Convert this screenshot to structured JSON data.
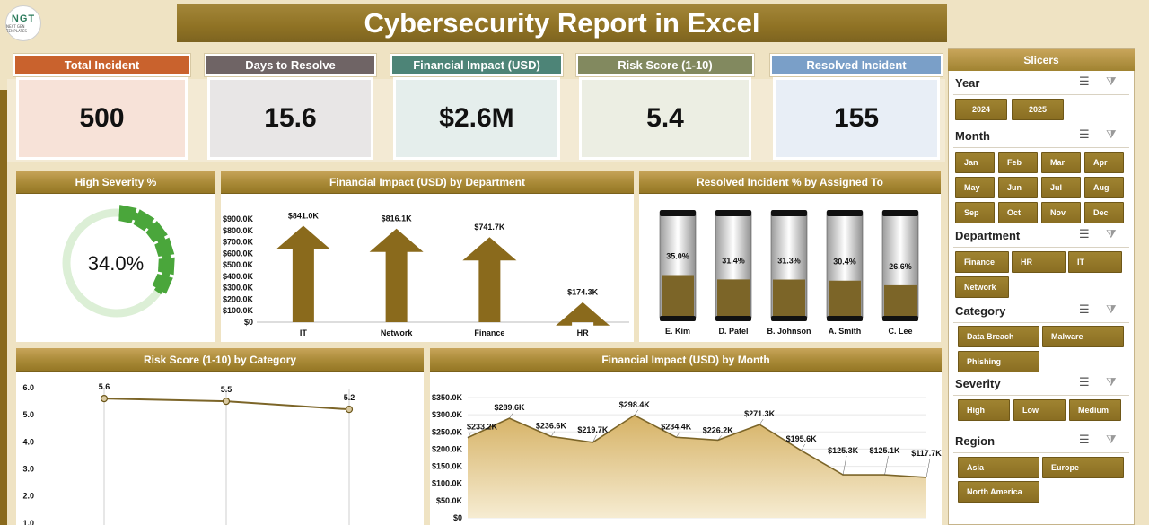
{
  "logo": {
    "text": "NGT",
    "tagline": "NEXT GEN TEMPLATES"
  },
  "title": "Cybersecurity Report in Excel",
  "kpis": [
    {
      "label": "Total Incident",
      "value": "500",
      "head_color": "#c9622d",
      "body_color": "#f7e2d8"
    },
    {
      "label": "Days to Resolve",
      "value": "15.6",
      "head_color": "#6f6465",
      "body_color": "#e8e6e6"
    },
    {
      "label": "Financial Impact (USD)",
      "value": "$2.6M",
      "head_color": "#4d8477",
      "body_color": "#e5eeec"
    },
    {
      "label": "Risk Score (1-10)",
      "value": "5.4",
      "head_color": "#82895f",
      "body_color": "#eceee3"
    },
    {
      "label": "Resolved Incident",
      "value": "155",
      "head_color": "#7a9fc8",
      "body_color": "#e8eef6"
    }
  ],
  "panels": {
    "high_severity": "High Severity %",
    "fin_by_dept": "Financial Impact (USD) by Department",
    "resolved_by_assignee": "Resolved Incident % by Assigned To",
    "risk_by_category": "Risk Score (1-10) by Category",
    "fin_by_month": "Financial Impact (USD) by Month"
  },
  "slicers": {
    "title": "Slicers",
    "year": {
      "label": "Year",
      "options": [
        "2024",
        "2025"
      ]
    },
    "month": {
      "label": "Month",
      "options": [
        "Jan",
        "Feb",
        "Mar",
        "Apr",
        "May",
        "Jun",
        "Jul",
        "Aug",
        "Sep",
        "Oct",
        "Nov",
        "Dec"
      ]
    },
    "department": {
      "label": "Department",
      "options": [
        "Finance",
        "HR",
        "IT",
        "Network"
      ]
    },
    "category": {
      "label": "Category",
      "options": [
        "Data Breach",
        "Malware",
        "Phishing"
      ]
    },
    "severity": {
      "label": "Severity",
      "options": [
        "High",
        "Low",
        "Medium"
      ]
    },
    "region": {
      "label": "Region",
      "options": [
        "Asia",
        "Europe",
        "North America"
      ]
    }
  },
  "chart_data": [
    {
      "id": "high_severity",
      "type": "pie",
      "title": "High Severity %",
      "value_label": "34.0%",
      "values": [
        34.0,
        66.0
      ],
      "colors": [
        "#4aa63b",
        "#dcefd6"
      ]
    },
    {
      "id": "fin_by_dept",
      "type": "bar",
      "title": "Financial Impact (USD) by Department",
      "categories": [
        "IT",
        "Network",
        "Finance",
        "HR"
      ],
      "values": [
        841.0,
        816.1,
        741.7,
        174.3
      ],
      "data_labels": [
        "$841.0K",
        "$816.1K",
        "$741.7K",
        "$174.3K"
      ],
      "yticks": [
        "$0",
        "$100.0K",
        "$200.0K",
        "$300.0K",
        "$400.0K",
        "$500.0K",
        "$600.0K",
        "$700.0K",
        "$800.0K",
        "$900.0K"
      ],
      "ylim": [
        0,
        900
      ],
      "color": "#8a6a1c"
    },
    {
      "id": "resolved_by_assignee",
      "type": "bar",
      "title": "Resolved Incident % by Assigned To",
      "categories": [
        "E. Kim",
        "D. Patel",
        "B. Johnson",
        "A. Smith",
        "C. Lee"
      ],
      "values": [
        35.0,
        31.4,
        31.3,
        30.4,
        26.6
      ],
      "data_labels": [
        "35.0%",
        "31.4%",
        "31.3%",
        "30.4%",
        "26.6%"
      ],
      "ylim": [
        0,
        100
      ],
      "color": "#7c6528"
    },
    {
      "id": "risk_by_category",
      "type": "line",
      "title": "Risk Score (1-10) by Category",
      "values": [
        5.6,
        5.5,
        5.2
      ],
      "data_labels": [
        "5.6",
        "5.5",
        "5.2"
      ],
      "yticks": [
        "1.0",
        "2.0",
        "3.0",
        "4.0",
        "5.0",
        "6.0"
      ],
      "ylim": [
        0,
        6.2
      ],
      "color": "#7c6528"
    },
    {
      "id": "fin_by_month",
      "type": "area",
      "title": "Financial Impact (USD) by Month",
      "values": [
        233.2,
        289.6,
        236.6,
        219.7,
        298.4,
        234.4,
        226.2,
        271.3,
        195.6,
        125.3,
        125.1,
        117.7
      ],
      "data_labels": [
        "$233.2K",
        "$289.6K",
        "$236.6K",
        "$219.7K",
        "$298.4K",
        "$234.4K",
        "$226.2K",
        "$271.3K",
        "$195.6K",
        "$125.3K",
        "$125.1K",
        "$117.7K"
      ],
      "yticks": [
        "$0",
        "$50.0K",
        "$100.0K",
        "$150.0K",
        "$200.0K",
        "$250.0K",
        "$300.0K",
        "$350.0K"
      ],
      "ylim": [
        0,
        350
      ],
      "color": "#8a6a1c"
    }
  ]
}
